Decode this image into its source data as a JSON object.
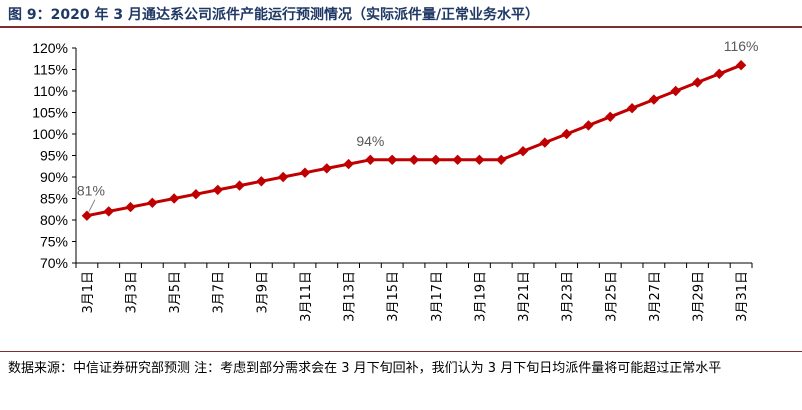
{
  "header": {
    "title": "图 9：2020 年 3 月通达系公司派件产能运行预测情况（实际派件量/正常业务水平）"
  },
  "footer": {
    "source": "数据来源：中信证券研究部预测 注：考虑到部分需求会在 3 月下旬回补，我们认为 3 月下旬日均派件量将可能超过正常水平"
  },
  "chart_data": {
    "type": "line",
    "title": "",
    "xlabel": "",
    "ylabel": "",
    "ylim": [
      70,
      120
    ],
    "y_ticks": [
      "70%",
      "75%",
      "80%",
      "85%",
      "90%",
      "95%",
      "100%",
      "105%",
      "110%",
      "115%",
      "120%"
    ],
    "y_unit": "%",
    "grid": false,
    "legend": "none",
    "line_color": "#c00000",
    "categories": [
      "3月1日",
      "3月2日",
      "3月3日",
      "3月4日",
      "3月5日",
      "3月6日",
      "3月7日",
      "3月8日",
      "3月9日",
      "3月10日",
      "3月11日",
      "3月12日",
      "3月13日",
      "3月14日",
      "3月15日",
      "3月16日",
      "3月17日",
      "3月18日",
      "3月19日",
      "3月20日",
      "3月21日",
      "3月22日",
      "3月23日",
      "3月24日",
      "3月25日",
      "3月26日",
      "3月27日",
      "3月28日",
      "3月29日",
      "3月30日",
      "3月31日"
    ],
    "x_tick_labels": [
      "3月1日",
      "3月3日",
      "3月5日",
      "3月7日",
      "3月9日",
      "3月11日",
      "3月13日",
      "3月15日",
      "3月17日",
      "3月19日",
      "3月21日",
      "3月23日",
      "3月25日",
      "3月27日",
      "3月29日",
      "3月31日"
    ],
    "values": [
      81,
      82,
      83,
      84,
      85,
      86,
      87,
      88,
      89,
      90,
      91,
      92,
      93,
      94,
      94,
      94,
      94,
      94,
      94,
      94,
      96,
      98,
      100,
      102,
      104,
      106,
      108,
      110,
      112,
      114,
      116
    ],
    "data_labels": [
      {
        "index": 0,
        "text": "81%"
      },
      {
        "index": 13,
        "text": "94%"
      },
      {
        "index": 30,
        "text": "116%"
      }
    ]
  }
}
